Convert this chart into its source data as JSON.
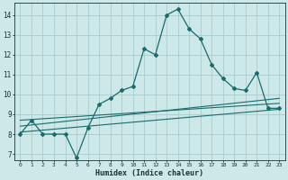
{
  "title": "",
  "xlabel": "Humidex (Indice chaleur)",
  "ylabel": "",
  "bg_color": "#cce8e8",
  "grid_color": "#aacccc",
  "line_color": "#1a6b6b",
  "xlim": [
    -0.5,
    23.5
  ],
  "ylim": [
    6.7,
    14.6
  ],
  "yticks": [
    7,
    8,
    9,
    10,
    11,
    12,
    13,
    14
  ],
  "xticks": [
    0,
    1,
    2,
    3,
    4,
    5,
    6,
    7,
    8,
    9,
    10,
    11,
    12,
    13,
    14,
    15,
    16,
    17,
    18,
    19,
    20,
    21,
    22,
    23
  ],
  "main_x": [
    0,
    1,
    2,
    3,
    4,
    5,
    6,
    7,
    8,
    9,
    10,
    11,
    12,
    13,
    14,
    15,
    16,
    17,
    18,
    19,
    20,
    21,
    22,
    23
  ],
  "main_y": [
    8.0,
    8.7,
    8.0,
    8.0,
    8.0,
    6.8,
    8.3,
    9.5,
    9.8,
    10.2,
    10.4,
    12.3,
    12.0,
    14.0,
    14.3,
    13.3,
    12.8,
    11.5,
    10.8,
    10.3,
    10.2,
    11.1,
    9.3,
    9.3
  ],
  "line2_x": [
    0,
    23
  ],
  "line2_y": [
    8.1,
    9.25
  ],
  "line3_x": [
    0,
    23
  ],
  "line3_y": [
    8.7,
    9.55
  ],
  "line4_x": [
    0,
    23
  ],
  "line4_y": [
    8.4,
    9.8
  ]
}
